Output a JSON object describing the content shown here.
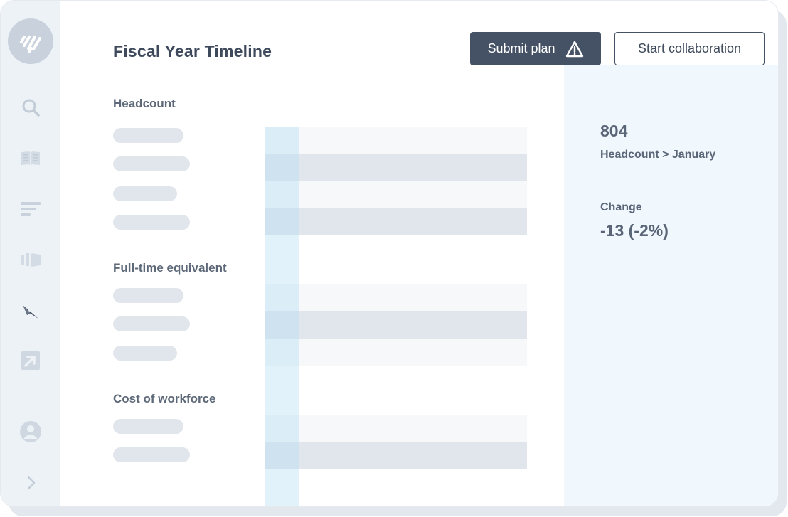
{
  "header": {
    "title": "Fiscal Year Timeline",
    "submit_label": "Submit plan",
    "collab_label": "Start collaboration"
  },
  "sidebar": {
    "items": [
      {
        "icon": "search-icon"
      },
      {
        "icon": "book-icon"
      },
      {
        "icon": "bars-icon"
      },
      {
        "icon": "cards-icon"
      },
      {
        "icon": "compass-icon"
      },
      {
        "icon": "arrow-box-icon"
      },
      {
        "icon": "user-icon"
      },
      {
        "icon": "chevron-right-icon"
      }
    ]
  },
  "sections": [
    {
      "label": "Headcount"
    },
    {
      "label": "Full-time equivalent"
    },
    {
      "label": "Cost of workforce"
    }
  ],
  "details": {
    "value": "804",
    "path": "Headcount > January",
    "change_label": "Change",
    "change_value": "-13 (-2%)"
  },
  "colors": {
    "accent": "#455266",
    "sidebar_bg": "#edf2f7",
    "panel_bg": "#f0f7fd",
    "column_highlight": "#d8eefa"
  }
}
